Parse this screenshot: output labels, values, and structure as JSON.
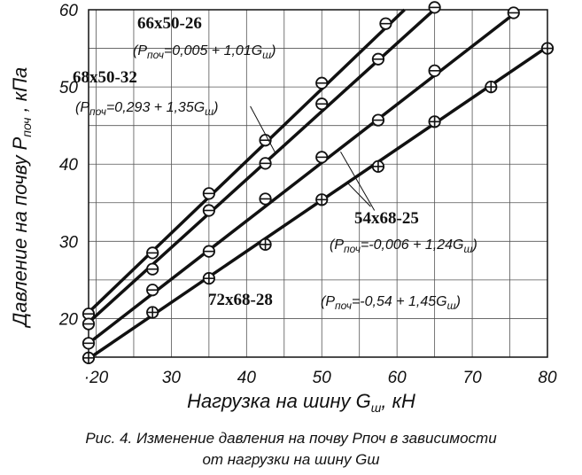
{
  "chart_data": {
    "type": "line",
    "xlabel": "Нагрузка на шину  Gш,  кН",
    "ylabel": "Давление на почву Pпоч , кПа",
    "xlim": [
      19,
      80
    ],
    "ylim": [
      15,
      60
    ],
    "x_ticks": [
      20,
      30,
      40,
      50,
      60,
      70,
      80
    ],
    "x_tick_labels": [
      "·20",
      "30",
      "40",
      "50",
      "60",
      "70",
      "80"
    ],
    "y_ticks": [
      20,
      30,
      40,
      50,
      60
    ],
    "grid": true,
    "series": [
      {
        "name": "66x50-26",
        "equation": "(Pпоч=0,005 + 1,01Gш)",
        "marker": "circle-bar",
        "line": {
          "x": [
            19,
            61
          ],
          "y": [
            20.8,
            60
          ]
        },
        "points": [
          {
            "x": 19,
            "y": 20.6
          },
          {
            "x": 27.5,
            "y": 28.5
          },
          {
            "x": 35,
            "y": 36.2
          },
          {
            "x": 42.5,
            "y": 43.1
          },
          {
            "x": 50,
            "y": 50.5
          },
          {
            "x": 58.5,
            "y": 58.2
          }
        ]
      },
      {
        "name": "68x50-32",
        "equation": "(Pпоч=0,293 + 1,35Gш)",
        "marker": "circle-bar",
        "line": {
          "x": [
            19,
            65.5
          ],
          "y": [
            19.5,
            60.5
          ]
        },
        "points": [
          {
            "x": 19,
            "y": 19.3
          },
          {
            "x": 27.5,
            "y": 26.4
          },
          {
            "x": 35,
            "y": 34
          },
          {
            "x": 42.5,
            "y": 40.1
          },
          {
            "x": 50,
            "y": 47.8
          },
          {
            "x": 57.5,
            "y": 53.6
          },
          {
            "x": 65,
            "y": 60.3
          }
        ]
      },
      {
        "name": "54x68-25",
        "equation": "(Pпоч=-0,006 + 1,24Gш)",
        "marker": "circle-bar",
        "line": {
          "x": [
            19,
            76
          ],
          "y": [
            16.8,
            59.8
          ]
        },
        "points": [
          {
            "x": 19,
            "y": 16.8
          },
          {
            "x": 27.5,
            "y": 23.7
          },
          {
            "x": 35,
            "y": 28.7
          },
          {
            "x": 42.5,
            "y": 35.5
          },
          {
            "x": 50,
            "y": 40.9
          },
          {
            "x": 57.5,
            "y": 45.7
          },
          {
            "x": 65,
            "y": 52.1
          },
          {
            "x": 75.5,
            "y": 59.6
          }
        ]
      },
      {
        "name": "72x68-28",
        "equation": "(Pпоч=-0,54 + 1,45Gш)",
        "marker": "circle-cross",
        "line": {
          "x": [
            19,
            80
          ],
          "y": [
            14.8,
            55.2
          ]
        },
        "points": [
          {
            "x": 19,
            "y": 14.9
          },
          {
            "x": 27.5,
            "y": 20.8
          },
          {
            "x": 35,
            "y": 25.2
          },
          {
            "x": 42.5,
            "y": 29.6
          },
          {
            "x": 50,
            "y": 35.4
          },
          {
            "x": 57.5,
            "y": 39.7
          },
          {
            "x": 65,
            "y": 45.5
          },
          {
            "x": 72.5,
            "y": 50
          },
          {
            "x": 80,
            "y": 55
          }
        ]
      }
    ]
  },
  "caption": {
    "line1": "Рис. 4. Изменение давления на почву Pпоч в зависимости",
    "line2": "от нагрузки на шину  Gш"
  }
}
